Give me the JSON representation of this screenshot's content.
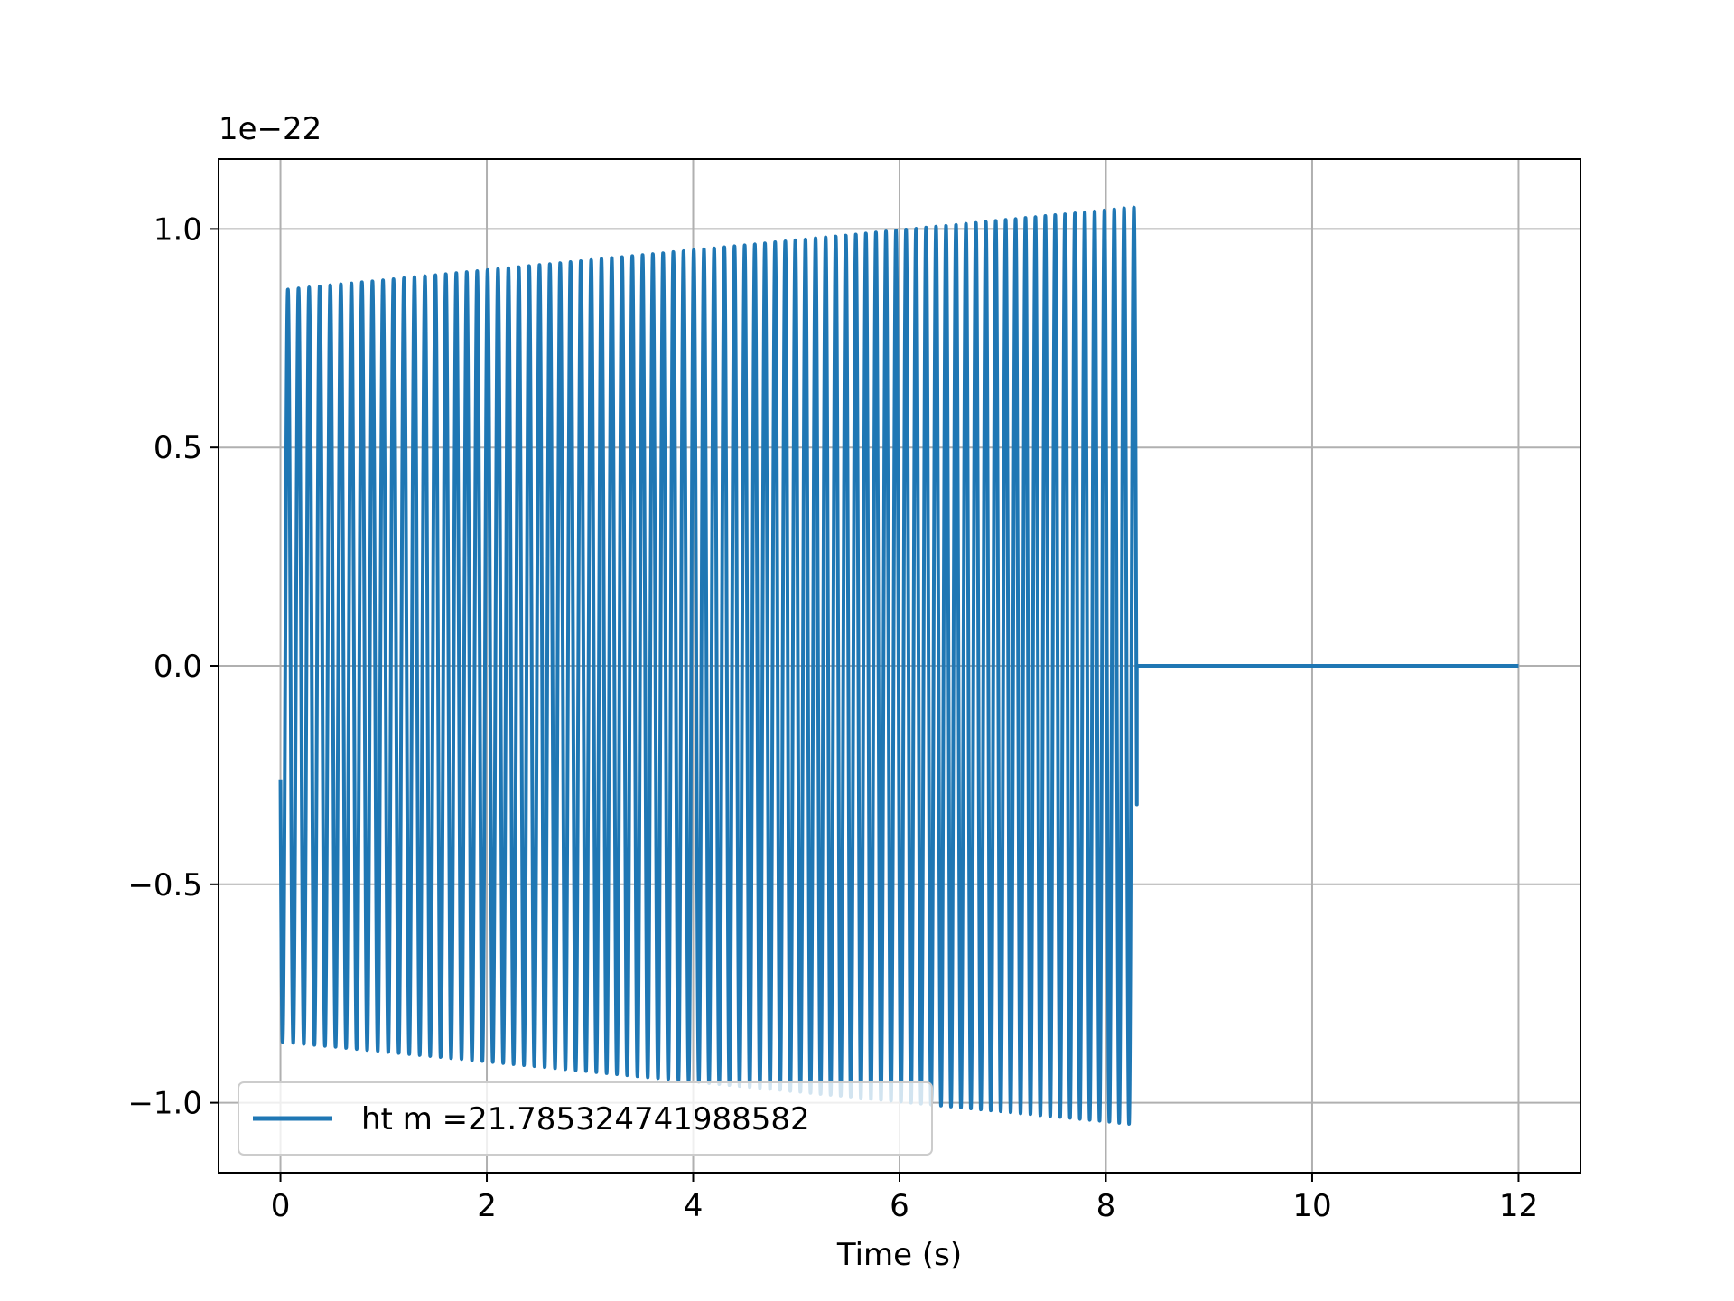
{
  "chart_data": {
    "type": "line",
    "title": "",
    "xlabel": "Time (s)",
    "ylabel": "",
    "offset_text": "1e−22",
    "y_scale_exponent": -22,
    "xlim": [
      -0.6,
      12.6
    ],
    "ylim": [
      -1.16,
      1.16
    ],
    "x_ticks": [
      0,
      2,
      4,
      6,
      8,
      10,
      12
    ],
    "x_tick_labels": [
      "0",
      "2",
      "4",
      "6",
      "8",
      "10",
      "12"
    ],
    "y_ticks": [
      -1.0,
      -0.5,
      0.0,
      0.5,
      1.0
    ],
    "y_tick_labels": [
      "−1.0",
      "−0.5",
      "0.0",
      "0.5",
      "1.0"
    ],
    "grid": true,
    "legend_position": "lower-left",
    "colors": {
      "series": "#1f77b4",
      "grid": "#b0b0b0",
      "frame": "#000000",
      "legend_border": "#cccccc"
    },
    "series": [
      {
        "name": "ht m =21.785324741988582",
        "color": "#1f77b4",
        "waveform": "chirp",
        "signal_start_s": 0.0,
        "signal_end_s": 8.3,
        "data_end_s": 12.0,
        "cycles": 84,
        "start_value": -0.26,
        "amplitude_start": 0.86,
        "amplitude_end": 1.05,
        "value_after_end": 0.0
      }
    ]
  }
}
